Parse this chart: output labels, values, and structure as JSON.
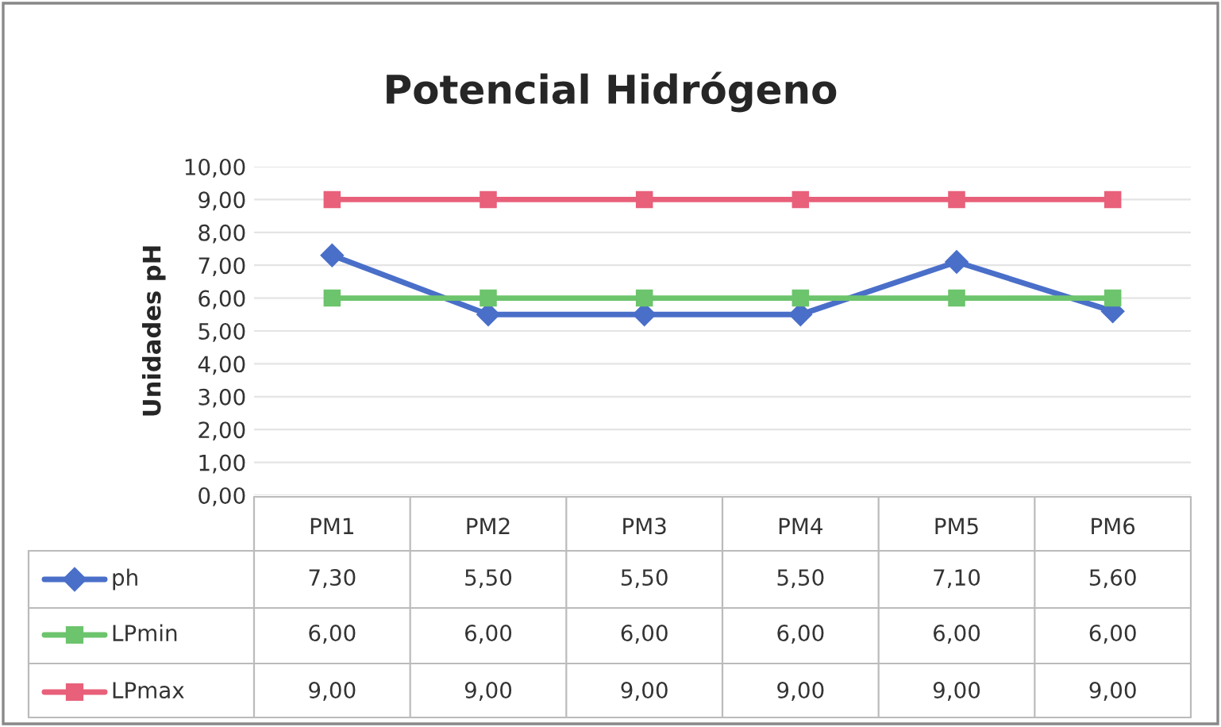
{
  "chart_data": {
    "type": "line",
    "title": "Potencial Hidrógeno",
    "ylabel": "Unidades pH",
    "categories": [
      "PM1",
      "PM2",
      "PM3",
      "PM4",
      "PM5",
      "PM6"
    ],
    "series": [
      {
        "name": "ph",
        "color": "#4a6fc9",
        "marker": "diamond",
        "values": [
          7.3,
          5.5,
          5.5,
          5.5,
          7.1,
          5.6
        ],
        "value_labels": [
          "7,30",
          "5,50",
          "5,50",
          "5,50",
          "7,10",
          "5,60"
        ]
      },
      {
        "name": "LPmin",
        "color": "#6cc46c",
        "marker": "square",
        "values": [
          6.0,
          6.0,
          6.0,
          6.0,
          6.0,
          6.0
        ],
        "value_labels": [
          "6,00",
          "6,00",
          "6,00",
          "6,00",
          "6,00",
          "6,00"
        ]
      },
      {
        "name": "LPmax",
        "color": "#e8607a",
        "marker": "square",
        "values": [
          9.0,
          9.0,
          9.0,
          9.0,
          9.0,
          9.0
        ],
        "value_labels": [
          "9,00",
          "9,00",
          "9,00",
          "9,00",
          "9,00",
          "9,00"
        ]
      }
    ],
    "ylim": [
      0,
      10
    ],
    "yticks": [
      {
        "value": 0,
        "label": "0,00"
      },
      {
        "value": 1,
        "label": "1,00"
      },
      {
        "value": 2,
        "label": "2,00"
      },
      {
        "value": 3,
        "label": "3,00"
      },
      {
        "value": 4,
        "label": "4,00"
      },
      {
        "value": 5,
        "label": "5,00"
      },
      {
        "value": 6,
        "label": "6,00"
      },
      {
        "value": 7,
        "label": "7,00"
      },
      {
        "value": 8,
        "label": "8,00"
      },
      {
        "value": 9,
        "label": "9,00"
      },
      {
        "value": 10,
        "label": "10,00"
      }
    ],
    "grid": "y",
    "legend": "bottom",
    "line_style": "solid"
  }
}
